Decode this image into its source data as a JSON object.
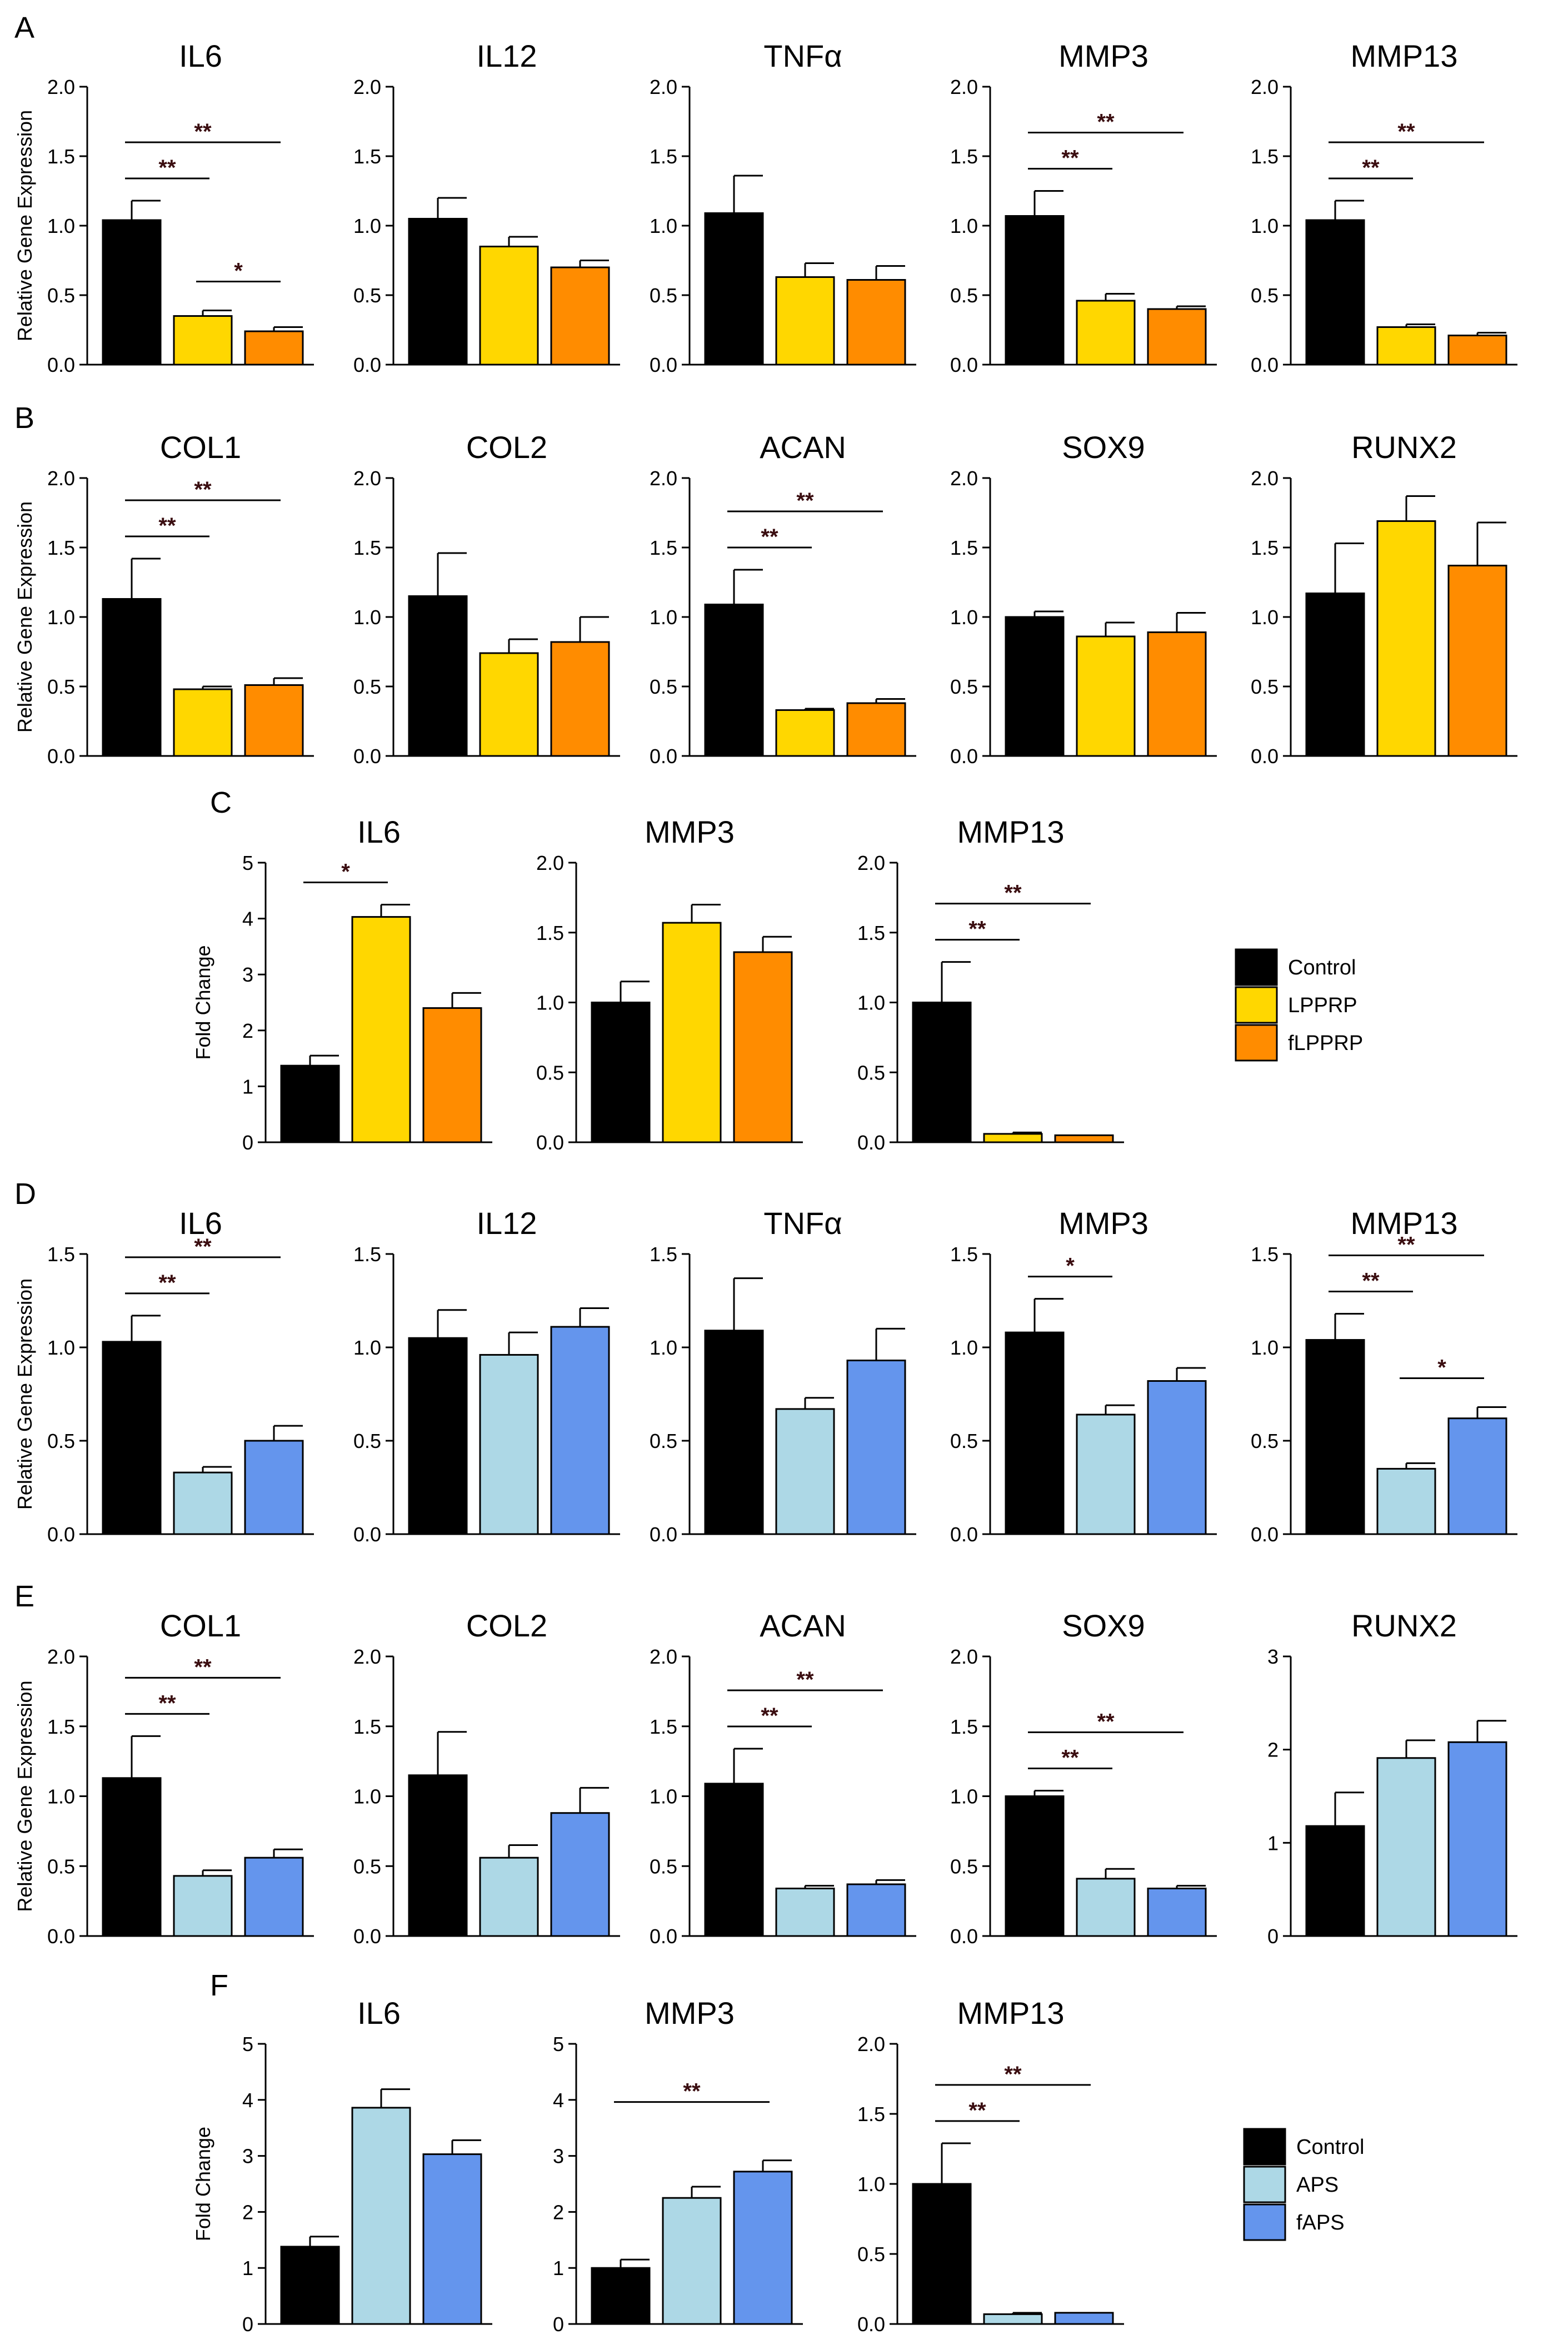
{
  "colors": {
    "Control": "#000000",
    "LPPRP": "#FFD700",
    "fLPPRP": "#FF8C00",
    "APS": "#ADD8E6",
    "fAPS": "#6495ED"
  },
  "panel_letters": [
    "A",
    "B",
    "C",
    "D",
    "E",
    "F"
  ],
  "legends": [
    {
      "panel": "C",
      "entries": [
        {
          "label": "Control",
          "color": "#000000"
        },
        {
          "label": "LPPRP",
          "color": "#FFD700"
        },
        {
          "label": "fLPPRP",
          "color": "#FF8C00"
        }
      ]
    },
    {
      "panel": "F",
      "entries": [
        {
          "label": "Control",
          "color": "#000000"
        },
        {
          "label": "APS",
          "color": "#ADD8E6"
        },
        {
          "label": "fAPS",
          "color": "#6495ED"
        }
      ]
    }
  ],
  "chart_data": [
    {
      "panel": "A",
      "type": "bar",
      "title": "IL6",
      "ylabel": "Relative Gene Expression",
      "ylim": [
        0,
        2.0
      ],
      "yticks": [
        "0.0",
        "0.5",
        "1.0",
        "1.5",
        "2.0"
      ],
      "categories": [
        "Control",
        "LPPRP",
        "fLPPRP"
      ],
      "values": [
        1.04,
        0.35,
        0.24
      ],
      "errors": [
        0.14,
        0.04,
        0.03
      ],
      "significance": [
        {
          "from": 0,
          "to": 1,
          "label": "**"
        },
        {
          "from": 0,
          "to": 2,
          "label": "**"
        },
        {
          "from": 1,
          "to": 2,
          "label": "*"
        }
      ]
    },
    {
      "panel": "A",
      "type": "bar",
      "title": "IL12",
      "ylabel": "",
      "ylim": [
        0,
        2.0
      ],
      "yticks": [
        "0.0",
        "0.5",
        "1.0",
        "1.5",
        "2.0"
      ],
      "categories": [
        "Control",
        "LPPRP",
        "fLPPRP"
      ],
      "values": [
        1.05,
        0.85,
        0.7
      ],
      "errors": [
        0.15,
        0.07,
        0.05
      ],
      "significance": []
    },
    {
      "panel": "A",
      "type": "bar",
      "title": "TNFα",
      "ylabel": "",
      "ylim": [
        0,
        2.0
      ],
      "yticks": [
        "0.0",
        "0.5",
        "1.0",
        "1.5",
        "2.0"
      ],
      "categories": [
        "Control",
        "LPPRP",
        "fLPPRP"
      ],
      "values": [
        1.09,
        0.63,
        0.61
      ],
      "errors": [
        0.27,
        0.1,
        0.1
      ],
      "significance": []
    },
    {
      "panel": "A",
      "type": "bar",
      "title": "MMP3",
      "ylabel": "",
      "ylim": [
        0,
        2.0
      ],
      "yticks": [
        "0.0",
        "0.5",
        "1.0",
        "1.5",
        "2.0"
      ],
      "categories": [
        "Control",
        "LPPRP",
        "fLPPRP"
      ],
      "values": [
        1.07,
        0.46,
        0.4
      ],
      "errors": [
        0.18,
        0.05,
        0.02
      ],
      "significance": [
        {
          "from": 0,
          "to": 1,
          "label": "**"
        },
        {
          "from": 0,
          "to": 2,
          "label": "**"
        }
      ]
    },
    {
      "panel": "A",
      "type": "bar",
      "title": "MMP13",
      "ylabel": "",
      "ylim": [
        0,
        2.0
      ],
      "yticks": [
        "0.0",
        "0.5",
        "1.0",
        "1.5",
        "2.0"
      ],
      "categories": [
        "Control",
        "LPPRP",
        "fLPPRP"
      ],
      "values": [
        1.04,
        0.27,
        0.21
      ],
      "errors": [
        0.14,
        0.02,
        0.02
      ],
      "significance": [
        {
          "from": 0,
          "to": 1,
          "label": "**"
        },
        {
          "from": 0,
          "to": 2,
          "label": "**"
        }
      ]
    },
    {
      "panel": "B",
      "type": "bar",
      "title": "COL1",
      "ylabel": "Relative Gene Expression",
      "ylim": [
        0,
        2.0
      ],
      "yticks": [
        "0.0",
        "0.5",
        "1.0",
        "1.5",
        "2.0"
      ],
      "categories": [
        "Control",
        "LPPRP",
        "fLPPRP"
      ],
      "values": [
        1.13,
        0.48,
        0.51
      ],
      "errors": [
        0.29,
        0.02,
        0.05
      ],
      "significance": [
        {
          "from": 0,
          "to": 1,
          "label": "**"
        },
        {
          "from": 0,
          "to": 2,
          "label": "**"
        }
      ]
    },
    {
      "panel": "B",
      "type": "bar",
      "title": "COL2",
      "ylabel": "",
      "ylim": [
        0,
        2.0
      ],
      "yticks": [
        "0.0",
        "0.5",
        "1.0",
        "1.5",
        "2.0"
      ],
      "categories": [
        "Control",
        "LPPRP",
        "fLPPRP"
      ],
      "values": [
        1.15,
        0.74,
        0.82
      ],
      "errors": [
        0.31,
        0.1,
        0.18
      ],
      "significance": []
    },
    {
      "panel": "B",
      "type": "bar",
      "title": "ACAN",
      "ylabel": "",
      "ylim": [
        0,
        2.0
      ],
      "yticks": [
        "0.0",
        "0.5",
        "1.0",
        "1.5",
        "2.0"
      ],
      "categories": [
        "Control",
        "LPPRP",
        "fLPPRP"
      ],
      "values": [
        1.09,
        0.33,
        0.38
      ],
      "errors": [
        0.25,
        0.01,
        0.03
      ],
      "significance": [
        {
          "from": 0,
          "to": 1,
          "label": "**"
        },
        {
          "from": 0,
          "to": 2,
          "label": "**"
        }
      ]
    },
    {
      "panel": "B",
      "type": "bar",
      "title": "SOX9",
      "ylabel": "",
      "ylim": [
        0,
        2.0
      ],
      "yticks": [
        "0.0",
        "0.5",
        "1.0",
        "1.5",
        "2.0"
      ],
      "categories": [
        "Control",
        "LPPRP",
        "fLPPRP"
      ],
      "values": [
        1.0,
        0.86,
        0.89
      ],
      "errors": [
        0.04,
        0.1,
        0.14
      ],
      "significance": []
    },
    {
      "panel": "B",
      "type": "bar",
      "title": "RUNX2",
      "ylabel": "",
      "ylim": [
        0,
        2.0
      ],
      "yticks": [
        "0.0",
        "0.5",
        "1.0",
        "1.5",
        "2.0"
      ],
      "categories": [
        "Control",
        "LPPRP",
        "fLPPRP"
      ],
      "values": [
        1.17,
        1.69,
        1.37
      ],
      "errors": [
        0.36,
        0.18,
        0.31
      ],
      "significance": []
    },
    {
      "panel": "C",
      "type": "bar",
      "title": "IL6",
      "ylabel": "Fold Change",
      "ylim": [
        0,
        5
      ],
      "yticks": [
        "0",
        "1",
        "2",
        "3",
        "4",
        "5"
      ],
      "categories": [
        "Control",
        "LPPRP",
        "fLPPRP"
      ],
      "values": [
        1.37,
        4.03,
        2.4
      ],
      "errors": [
        0.18,
        0.22,
        0.27
      ],
      "significance": [
        {
          "from": 0,
          "to": 1,
          "label": "*"
        }
      ]
    },
    {
      "panel": "C",
      "type": "bar",
      "title": "MMP3",
      "ylabel": "",
      "ylim": [
        0,
        2.0
      ],
      "yticks": [
        "0.0",
        "0.5",
        "1.0",
        "1.5",
        "2.0"
      ],
      "categories": [
        "Control",
        "LPPRP",
        "fLPPRP"
      ],
      "values": [
        1.0,
        1.57,
        1.36
      ],
      "errors": [
        0.15,
        0.13,
        0.11
      ],
      "significance": []
    },
    {
      "panel": "C",
      "type": "bar",
      "title": "MMP13",
      "ylabel": "",
      "ylim": [
        0,
        2.0
      ],
      "yticks": [
        "0.0",
        "0.5",
        "1.0",
        "1.5",
        "2.0"
      ],
      "categories": [
        "Control",
        "LPPRP",
        "fLPPRP"
      ],
      "values": [
        1.0,
        0.06,
        0.05
      ],
      "errors": [
        0.29,
        0.01,
        0.0
      ],
      "significance": [
        {
          "from": 0,
          "to": 1,
          "label": "**"
        },
        {
          "from": 0,
          "to": 2,
          "label": "**"
        }
      ]
    },
    {
      "panel": "D",
      "type": "bar",
      "title": "IL6",
      "ylabel": "Relative Gene Expression",
      "ylim": [
        0,
        1.5
      ],
      "yticks": [
        "0.0",
        "0.5",
        "1.0",
        "1.5"
      ],
      "categories": [
        "Control",
        "APS",
        "fAPS"
      ],
      "values": [
        1.03,
        0.33,
        0.5
      ],
      "errors": [
        0.14,
        0.03,
        0.08
      ],
      "significance": [
        {
          "from": 0,
          "to": 1,
          "label": "**"
        },
        {
          "from": 0,
          "to": 2,
          "label": "**"
        }
      ]
    },
    {
      "panel": "D",
      "type": "bar",
      "title": "IL12",
      "ylabel": "",
      "ylim": [
        0,
        1.5
      ],
      "yticks": [
        "0.0",
        "0.5",
        "1.0",
        "1.5"
      ],
      "categories": [
        "Control",
        "APS",
        "fAPS"
      ],
      "values": [
        1.05,
        0.96,
        1.11
      ],
      "errors": [
        0.15,
        0.12,
        0.1
      ],
      "significance": []
    },
    {
      "panel": "D",
      "type": "bar",
      "title": "TNFα",
      "ylabel": "",
      "ylim": [
        0,
        1.5
      ],
      "yticks": [
        "0.0",
        "0.5",
        "1.0",
        "1.5"
      ],
      "categories": [
        "Control",
        "APS",
        "fAPS"
      ],
      "values": [
        1.09,
        0.67,
        0.93
      ],
      "errors": [
        0.28,
        0.06,
        0.17
      ],
      "significance": []
    },
    {
      "panel": "D",
      "type": "bar",
      "title": "MMP3",
      "ylabel": "",
      "ylim": [
        0,
        1.5
      ],
      "yticks": [
        "0.0",
        "0.5",
        "1.0",
        "1.5"
      ],
      "categories": [
        "Control",
        "APS",
        "fAPS"
      ],
      "values": [
        1.08,
        0.64,
        0.82
      ],
      "errors": [
        0.18,
        0.05,
        0.07
      ],
      "significance": [
        {
          "from": 0,
          "to": 1,
          "label": "*"
        }
      ]
    },
    {
      "panel": "D",
      "type": "bar",
      "title": "MMP13",
      "ylabel": "",
      "ylim": [
        0,
        1.5
      ],
      "yticks": [
        "0.0",
        "0.5",
        "1.0",
        "1.5"
      ],
      "categories": [
        "Control",
        "APS",
        "fAPS"
      ],
      "values": [
        1.04,
        0.35,
        0.62
      ],
      "errors": [
        0.14,
        0.03,
        0.06
      ],
      "significance": [
        {
          "from": 0,
          "to": 1,
          "label": "**"
        },
        {
          "from": 0,
          "to": 2,
          "label": "**"
        },
        {
          "from": 1,
          "to": 2,
          "label": "*"
        }
      ]
    },
    {
      "panel": "E",
      "type": "bar",
      "title": "COL1",
      "ylabel": "Relative Gene Expression",
      "ylim": [
        0,
        2.0
      ],
      "yticks": [
        "0.0",
        "0.5",
        "1.0",
        "1.5",
        "2.0"
      ],
      "categories": [
        "Control",
        "APS",
        "fAPS"
      ],
      "values": [
        1.13,
        0.43,
        0.56
      ],
      "errors": [
        0.3,
        0.04,
        0.06
      ],
      "significance": [
        {
          "from": 0,
          "to": 1,
          "label": "**"
        },
        {
          "from": 0,
          "to": 2,
          "label": "**"
        }
      ]
    },
    {
      "panel": "E",
      "type": "bar",
      "title": "COL2",
      "ylabel": "",
      "ylim": [
        0,
        2.0
      ],
      "yticks": [
        "0.0",
        "0.5",
        "1.0",
        "1.5",
        "2.0"
      ],
      "categories": [
        "Control",
        "APS",
        "fAPS"
      ],
      "values": [
        1.15,
        0.56,
        0.88
      ],
      "errors": [
        0.31,
        0.09,
        0.18
      ],
      "significance": []
    },
    {
      "panel": "E",
      "type": "bar",
      "title": "ACAN",
      "ylabel": "",
      "ylim": [
        0,
        2.0
      ],
      "yticks": [
        "0.0",
        "0.5",
        "1.0",
        "1.5",
        "2.0"
      ],
      "categories": [
        "Control",
        "APS",
        "fAPS"
      ],
      "values": [
        1.09,
        0.34,
        0.37
      ],
      "errors": [
        0.25,
        0.02,
        0.03
      ],
      "significance": [
        {
          "from": 0,
          "to": 1,
          "label": "**"
        },
        {
          "from": 0,
          "to": 2,
          "label": "**"
        }
      ]
    },
    {
      "panel": "E",
      "type": "bar",
      "title": "SOX9",
      "ylabel": "",
      "ylim": [
        0,
        2.0
      ],
      "yticks": [
        "0.0",
        "0.5",
        "1.0",
        "1.5",
        "2.0"
      ],
      "categories": [
        "Control",
        "APS",
        "fAPS"
      ],
      "values": [
        1.0,
        0.41,
        0.34
      ],
      "errors": [
        0.04,
        0.07,
        0.02
      ],
      "significance": [
        {
          "from": 0,
          "to": 1,
          "label": "**"
        },
        {
          "from": 0,
          "to": 2,
          "label": "**"
        }
      ]
    },
    {
      "panel": "E",
      "type": "bar",
      "title": "RUNX2",
      "ylabel": "",
      "ylim": [
        0,
        3
      ],
      "yticks": [
        "0",
        "1",
        "2",
        "3"
      ],
      "categories": [
        "Control",
        "APS",
        "fAPS"
      ],
      "values": [
        1.18,
        1.91,
        2.08
      ],
      "errors": [
        0.36,
        0.19,
        0.23
      ],
      "significance": []
    },
    {
      "panel": "F",
      "type": "bar",
      "title": "IL6",
      "ylabel": "Fold Change",
      "ylim": [
        0,
        5
      ],
      "yticks": [
        "0",
        "1",
        "2",
        "3",
        "4",
        "5"
      ],
      "categories": [
        "Control",
        "APS",
        "fAPS"
      ],
      "values": [
        1.38,
        3.86,
        3.03
      ],
      "errors": [
        0.18,
        0.33,
        0.25
      ],
      "significance": []
    },
    {
      "panel": "F",
      "type": "bar",
      "title": "MMP3",
      "ylabel": "",
      "ylim": [
        0,
        5
      ],
      "yticks": [
        "0",
        "1",
        "2",
        "3",
        "4",
        "5"
      ],
      "categories": [
        "Control",
        "APS",
        "fAPS"
      ],
      "values": [
        1.0,
        2.25,
        2.72
      ],
      "errors": [
        0.15,
        0.2,
        0.2
      ],
      "significance": [
        {
          "from": 0,
          "to": 2,
          "label": "**"
        }
      ]
    },
    {
      "panel": "F",
      "type": "bar",
      "title": "MMP13",
      "ylabel": "",
      "ylim": [
        0,
        2.0
      ],
      "yticks": [
        "0.0",
        "0.5",
        "1.0",
        "1.5",
        "2.0"
      ],
      "categories": [
        "Control",
        "APS",
        "fAPS"
      ],
      "values": [
        1.0,
        0.07,
        0.08
      ],
      "errors": [
        0.29,
        0.01,
        0.0
      ],
      "significance": [
        {
          "from": 0,
          "to": 1,
          "label": "**"
        },
        {
          "from": 0,
          "to": 2,
          "label": "**"
        }
      ]
    }
  ]
}
